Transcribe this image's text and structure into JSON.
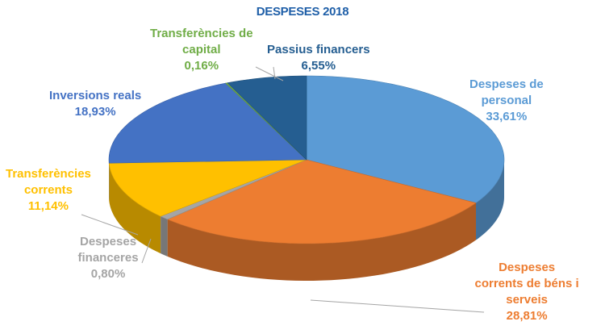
{
  "chart_data": {
    "type": "pie",
    "title": "DESPESES 2018",
    "slices": [
      {
        "name_lines": [
          "Despeses de",
          "personal"
        ],
        "value": 33.61,
        "label_value": "33,61%",
        "color": "#5b9bd5"
      },
      {
        "name_lines": [
          "Despeses",
          "corrents de béns i",
          "serveis"
        ],
        "value": 28.81,
        "label_value": "28,81%",
        "color": "#ed7d31"
      },
      {
        "name_lines": [
          "Despeses",
          "financeres"
        ],
        "value": 0.8,
        "label_value": "0,80%",
        "color": "#a5a5a5"
      },
      {
        "name_lines": [
          "Transferències",
          "corrents"
        ],
        "value": 11.14,
        "label_value": "11,14%",
        "color": "#ffc000"
      },
      {
        "name_lines": [
          "Inversions reals"
        ],
        "value": 18.93,
        "label_value": "18,93%",
        "color": "#4472c4"
      },
      {
        "name_lines": [
          "Transferències de",
          "capital"
        ],
        "value": 0.16,
        "label_value": "0,16%",
        "color": "#70ad47"
      },
      {
        "name_lines": [
          "Passius financers"
        ],
        "value": 6.55,
        "label_value": "6,55%",
        "color": "#255e91"
      }
    ],
    "label_colors": [
      "#5b9bd5",
      "#ed7d31",
      "#a5a5a5",
      "#ffc000",
      "#4472c4",
      "#70ad47",
      "#255e91"
    ],
    "style": "3d-tilted-pie",
    "start_angle": "12 o'clock, clockwise"
  }
}
